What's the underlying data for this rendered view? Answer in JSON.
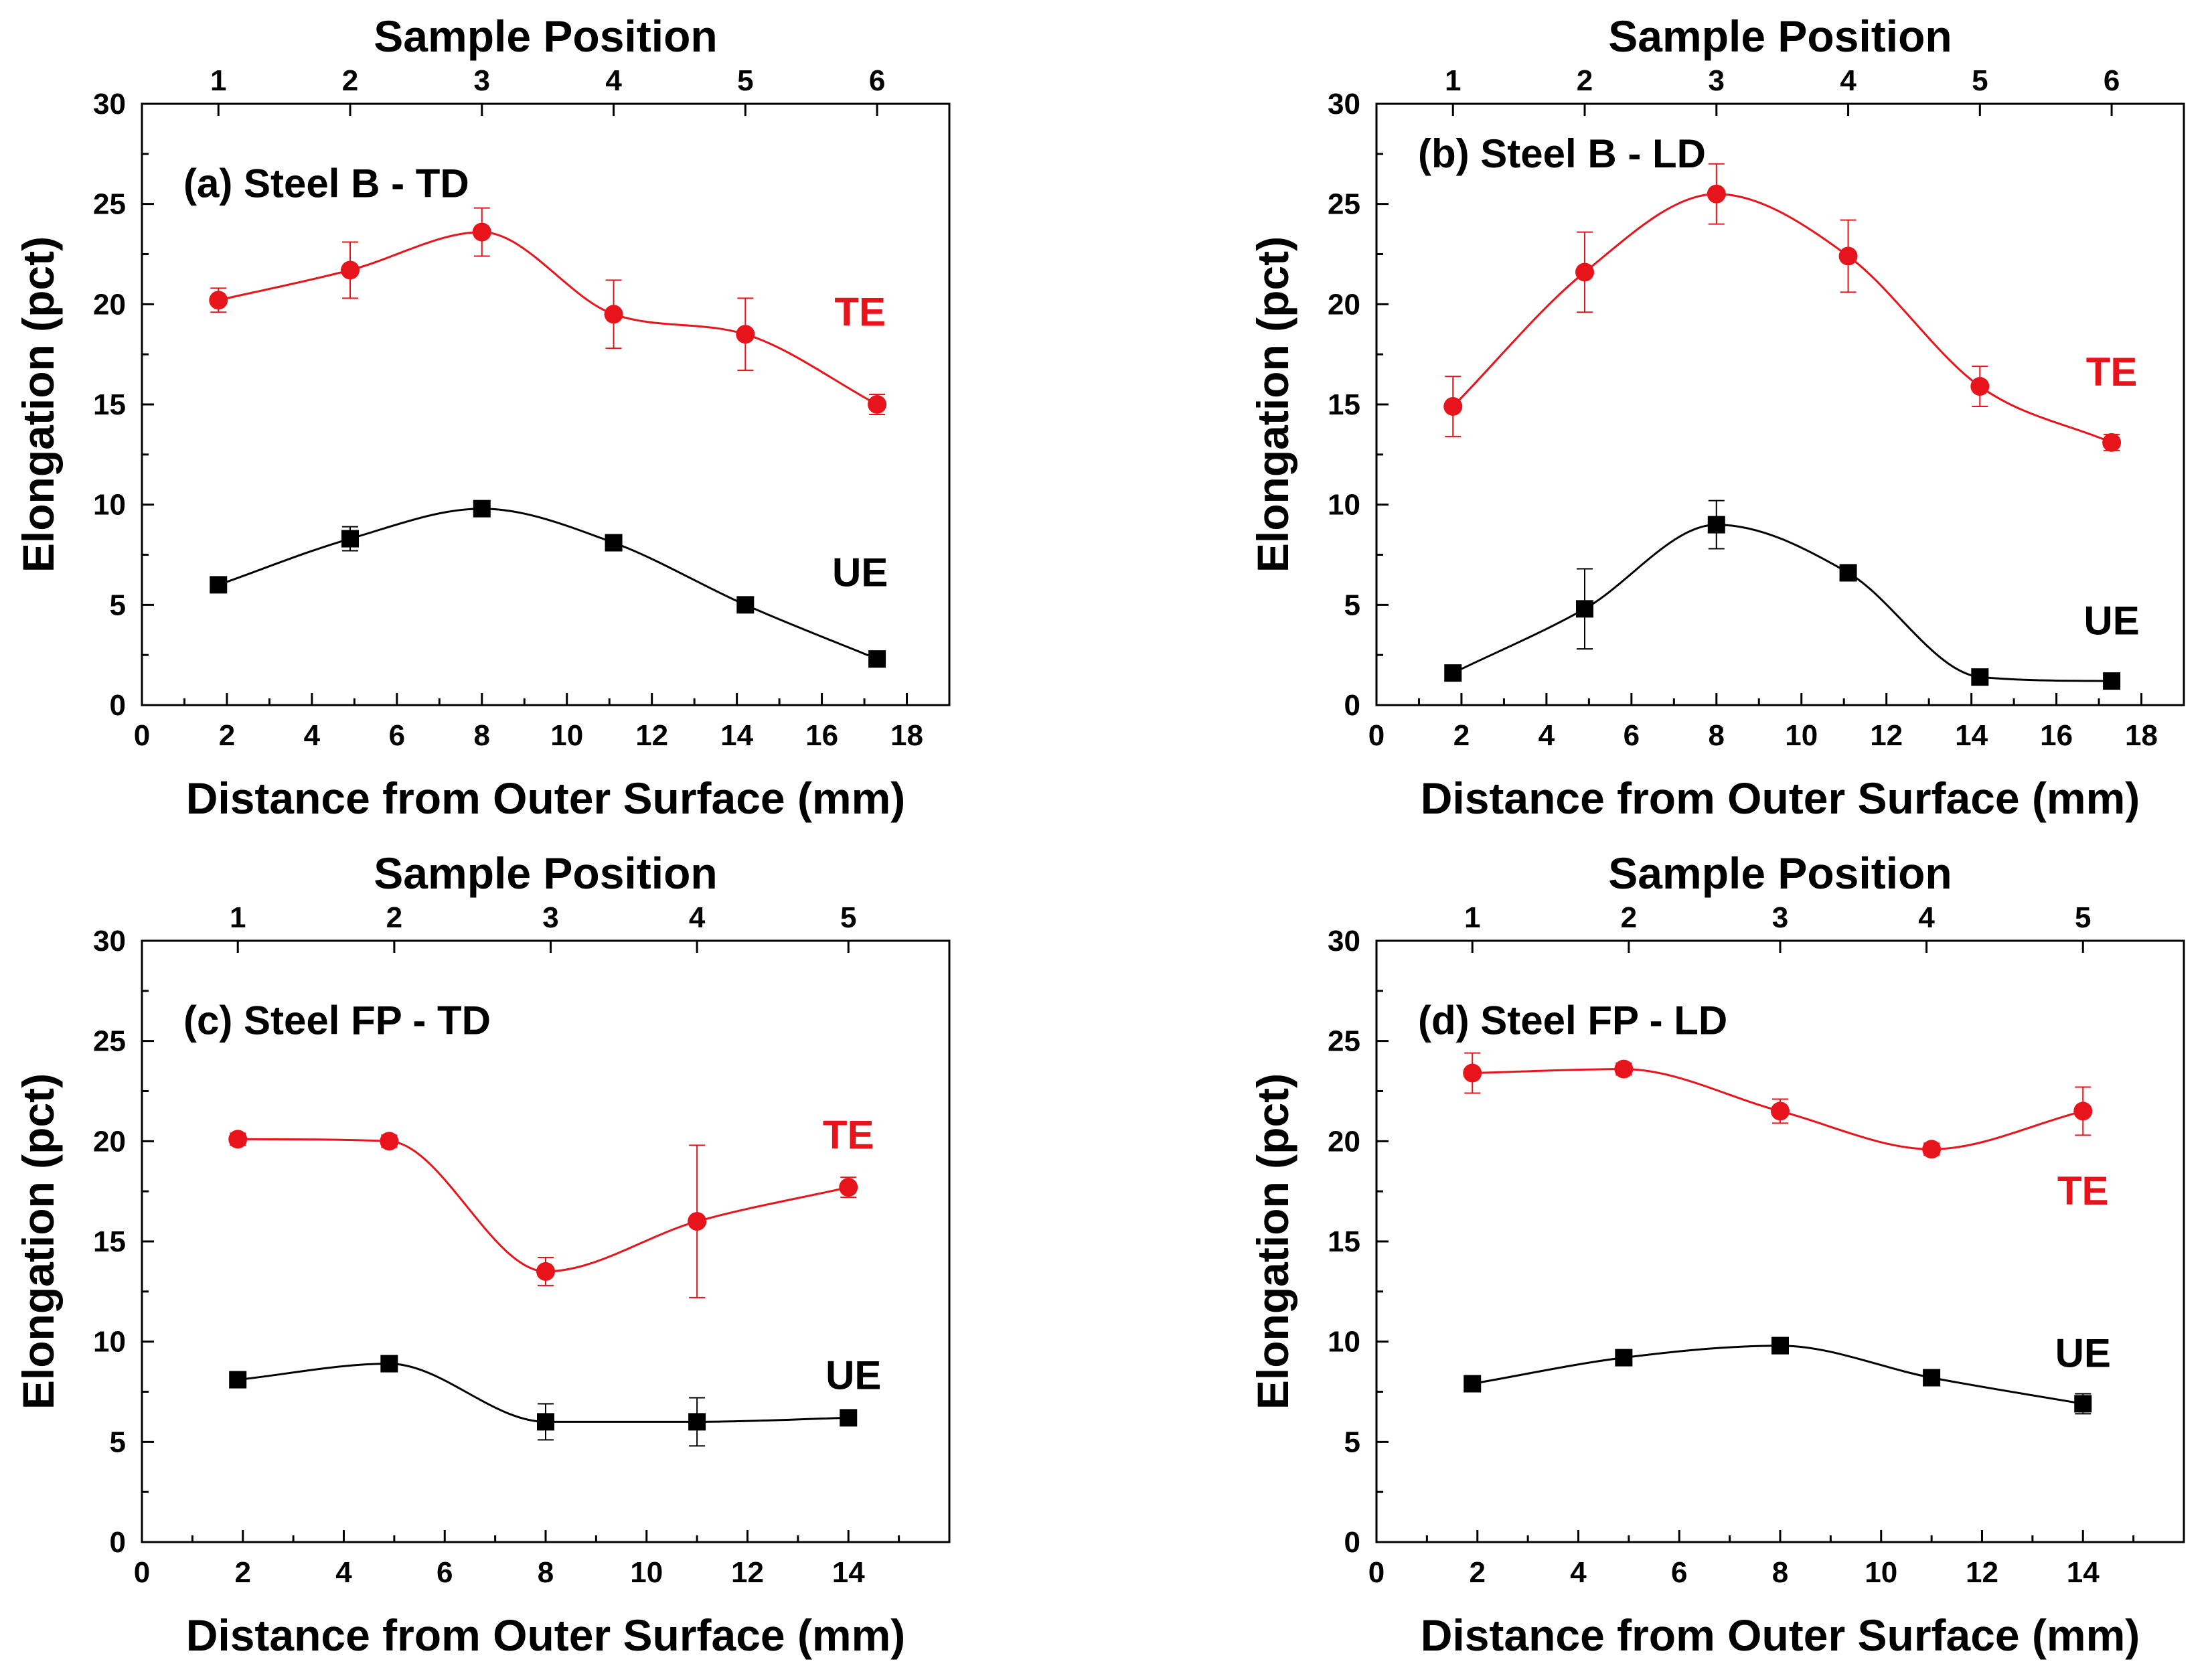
{
  "colors": {
    "te": "#e8141c",
    "ue": "#000000",
    "axis": "#000000",
    "background": "#ffffff"
  },
  "chart_data": [
    {
      "type": "scatter",
      "panel_label": "(a) Steel B - TD",
      "title_top": "Sample Position",
      "xlabel": "Distance from Outer Surface (mm)",
      "ylabel": "Elongation (pct)",
      "xlim": [
        0,
        19
      ],
      "ylim": [
        0,
        30
      ],
      "xticks": [
        0,
        2,
        4,
        6,
        8,
        10,
        12,
        14,
        16,
        18
      ],
      "yticks": [
        0,
        5,
        10,
        15,
        20,
        25,
        30
      ],
      "top_ticks": {
        "labels": [
          "1",
          "2",
          "3",
          "4",
          "5",
          "6"
        ],
        "x": [
          1.8,
          4.9,
          8.0,
          11.1,
          14.2,
          17.3
        ]
      },
      "series": [
        {
          "name": "TE",
          "marker": "circle",
          "color": "#e8141c",
          "x": [
            1.8,
            4.9,
            8.0,
            11.1,
            14.2,
            17.3
          ],
          "y": [
            20.2,
            21.7,
            23.6,
            19.5,
            18.5,
            15.0
          ],
          "err": [
            0.6,
            1.4,
            1.2,
            1.7,
            1.8,
            0.5
          ],
          "label_at": [
            16.9,
            19.6
          ]
        },
        {
          "name": "UE",
          "marker": "square",
          "color": "#000000",
          "x": [
            1.8,
            4.9,
            8.0,
            11.1,
            14.2,
            17.3
          ],
          "y": [
            6.0,
            8.3,
            9.8,
            8.1,
            5.0,
            2.3
          ],
          "err": [
            0.3,
            0.6,
            0.3,
            0.3,
            0.2,
            0.2
          ],
          "label_at": [
            16.9,
            6.6
          ]
        }
      ]
    },
    {
      "type": "scatter",
      "panel_label": "(b) Steel B - LD",
      "title_top": "Sample Position",
      "xlabel": "Distance from Outer Surface (mm)",
      "ylabel": "Elongation (pct)",
      "xlim": [
        0,
        19
      ],
      "ylim": [
        0,
        30
      ],
      "xticks": [
        0,
        2,
        4,
        6,
        8,
        10,
        12,
        14,
        16,
        18
      ],
      "yticks": [
        0,
        5,
        10,
        15,
        20,
        25,
        30
      ],
      "top_ticks": {
        "labels": [
          "1",
          "2",
          "3",
          "4",
          "5",
          "6"
        ],
        "x": [
          1.8,
          4.9,
          8.0,
          11.1,
          14.2,
          17.3
        ]
      },
      "series": [
        {
          "name": "TE",
          "marker": "circle",
          "color": "#e8141c",
          "x": [
            1.8,
            4.9,
            8.0,
            11.1,
            14.2,
            17.3
          ],
          "y": [
            14.9,
            21.6,
            25.5,
            22.4,
            15.9,
            13.1
          ],
          "err": [
            1.5,
            2.0,
            1.5,
            1.8,
            1.0,
            0.4
          ],
          "label_at": [
            17.3,
            16.6
          ]
        },
        {
          "name": "UE",
          "marker": "square",
          "color": "#000000",
          "x": [
            1.8,
            4.9,
            8.0,
            11.1,
            14.2,
            17.3
          ],
          "y": [
            1.6,
            4.8,
            9.0,
            6.6,
            1.4,
            1.2
          ],
          "err": [
            0.3,
            2.0,
            1.2,
            0.4,
            0.2,
            0.2
          ],
          "label_at": [
            17.3,
            4.2
          ]
        }
      ]
    },
    {
      "type": "scatter",
      "panel_label": "(c) Steel FP - TD",
      "title_top": "Sample Position",
      "xlabel": "Distance from Outer Surface (mm)",
      "ylabel": "Elongation (pct)",
      "xlim": [
        0,
        16
      ],
      "ylim": [
        0,
        30
      ],
      "xticks": [
        0,
        2,
        4,
        6,
        8,
        10,
        12,
        14
      ],
      "yticks": [
        0,
        5,
        10,
        15,
        20,
        25,
        30
      ],
      "top_ticks": {
        "labels": [
          "1",
          "2",
          "3",
          "4",
          "5"
        ],
        "x": [
          1.9,
          5.0,
          8.1,
          11.0,
          14.0
        ]
      },
      "series": [
        {
          "name": "TE",
          "marker": "circle",
          "color": "#e8141c",
          "x": [
            1.9,
            4.9,
            8.0,
            11.0,
            14.0
          ],
          "y": [
            20.1,
            20.0,
            13.5,
            16.0,
            17.7
          ],
          "err": [
            0.3,
            0.3,
            0.7,
            3.8,
            0.5
          ],
          "label_at": [
            14.0,
            20.3
          ]
        },
        {
          "name": "UE",
          "marker": "square",
          "color": "#000000",
          "x": [
            1.9,
            4.9,
            8.0,
            11.0,
            14.0
          ],
          "y": [
            8.1,
            8.9,
            6.0,
            6.0,
            6.2
          ],
          "err": [
            0.3,
            0.3,
            0.9,
            1.2,
            0.3
          ],
          "label_at": [
            14.1,
            8.3
          ]
        }
      ]
    },
    {
      "type": "scatter",
      "panel_label": "(d) Steel FP - LD",
      "title_top": "Sample Position",
      "xlabel": "Distance from Outer Surface (mm)",
      "ylabel": "Elongation (pct)",
      "xlim": [
        0,
        16
      ],
      "ylim": [
        0,
        30
      ],
      "xticks": [
        0,
        2,
        4,
        6,
        8,
        10,
        12,
        14
      ],
      "yticks": [
        0,
        5,
        10,
        15,
        20,
        25,
        30
      ],
      "top_ticks": {
        "labels": [
          "1",
          "2",
          "3",
          "4",
          "5"
        ],
        "x": [
          1.9,
          5.0,
          8.0,
          10.9,
          14.0
        ]
      },
      "series": [
        {
          "name": "TE",
          "marker": "circle",
          "color": "#e8141c",
          "x": [
            1.9,
            4.9,
            8.0,
            11.0,
            14.0
          ],
          "y": [
            23.4,
            23.6,
            21.5,
            19.6,
            21.5
          ],
          "err": [
            1.0,
            0.3,
            0.6,
            0.3,
            1.2
          ],
          "label_at": [
            14.0,
            17.5
          ]
        },
        {
          "name": "UE",
          "marker": "square",
          "color": "#000000",
          "x": [
            1.9,
            4.9,
            8.0,
            11.0,
            14.0
          ],
          "y": [
            7.9,
            9.2,
            9.8,
            8.2,
            6.9
          ],
          "err": [
            0.2,
            0.3,
            0.4,
            0.3,
            0.5
          ],
          "label_at": [
            14.0,
            9.4
          ]
        }
      ]
    }
  ]
}
